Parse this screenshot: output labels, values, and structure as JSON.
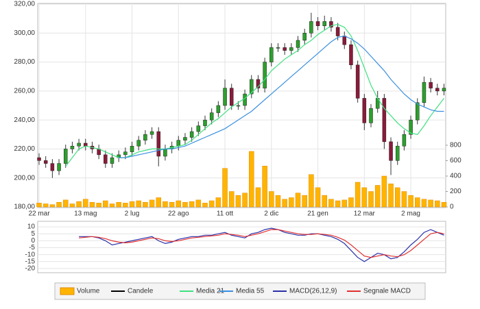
{
  "chart_data": [
    {
      "type": "candlestick",
      "categories": [
        "22 mar",
        null,
        null,
        null,
        null,
        null,
        null,
        "13 mag",
        null,
        null,
        null,
        null,
        null,
        null,
        "2 lug",
        null,
        null,
        null,
        null,
        null,
        null,
        "22 ago",
        null,
        null,
        null,
        null,
        null,
        null,
        "11 ott",
        null,
        null,
        null,
        null,
        null,
        null,
        "2 dic",
        null,
        null,
        null,
        null,
        null,
        null,
        "21 gen",
        null,
        null,
        null,
        null,
        null,
        null,
        "12 mar",
        null,
        null,
        null,
        null,
        null,
        null,
        "2 mag",
        null,
        null,
        null,
        null,
        null
      ],
      "series": [
        {
          "name": "Candele",
          "type": "candlestick",
          "color": "#000000",
          "up_color": "#2ca02c",
          "down_color": "#8b1a3a",
          "open": [
            214,
            212,
            210,
            205,
            210,
            220,
            222,
            224,
            222,
            220,
            216,
            210,
            214,
            216,
            218,
            222,
            226,
            230,
            232,
            215,
            220,
            222,
            226,
            228,
            232,
            236,
            240,
            245,
            250,
            262,
            250,
            250,
            258,
            268,
            262,
            280,
            290,
            290,
            288,
            290,
            295,
            300,
            308,
            305,
            308,
            304,
            298,
            292,
            278,
            255,
            238,
            248,
            255,
            225,
            212,
            222,
            230,
            240,
            252,
            266,
            262,
            260
          ],
          "high": [
            217,
            215,
            213,
            213,
            223,
            225,
            227,
            227,
            225,
            223,
            219,
            217,
            219,
            221,
            225,
            229,
            233,
            235,
            235,
            223,
            225,
            229,
            231,
            235,
            239,
            243,
            248,
            253,
            268,
            265,
            253,
            261,
            271,
            271,
            283,
            293,
            293,
            293,
            293,
            298,
            303,
            314,
            311,
            312,
            311,
            307,
            301,
            295,
            281,
            258,
            251,
            260,
            258,
            228,
            225,
            233,
            243,
            255,
            270,
            269,
            265,
            265
          ],
          "low": [
            209,
            207,
            200,
            202,
            207,
            217,
            219,
            219,
            217,
            213,
            207,
            207,
            211,
            213,
            215,
            219,
            223,
            227,
            208,
            212,
            217,
            219,
            223,
            225,
            229,
            233,
            237,
            242,
            247,
            247,
            247,
            247,
            255,
            259,
            259,
            277,
            287,
            285,
            285,
            287,
            292,
            297,
            302,
            302,
            301,
            295,
            289,
            275,
            252,
            233,
            235,
            245,
            220,
            202,
            209,
            219,
            227,
            237,
            249,
            259,
            257,
            257
          ],
          "close": [
            212,
            210,
            205,
            210,
            220,
            222,
            224,
            222,
            220,
            216,
            210,
            214,
            216,
            218,
            222,
            226,
            230,
            232,
            215,
            220,
            222,
            226,
            228,
            232,
            236,
            240,
            245,
            250,
            262,
            250,
            250,
            258,
            268,
            262,
            280,
            290,
            290,
            288,
            290,
            295,
            300,
            308,
            305,
            308,
            304,
            298,
            292,
            278,
            255,
            238,
            248,
            255,
            225,
            212,
            222,
            230,
            240,
            252,
            266,
            262,
            260,
            262
          ]
        },
        {
          "name": "Volume",
          "type": "bar",
          "axis": "y2",
          "color": "#ffb400",
          "values": [
            50,
            40,
            30,
            60,
            90,
            40,
            70,
            100,
            60,
            50,
            80,
            40,
            60,
            50,
            70,
            80,
            60,
            90,
            120,
            70,
            60,
            80,
            60,
            70,
            90,
            50,
            80,
            120,
            500,
            200,
            150,
            180,
            720,
            250,
            530,
            200,
            150,
            100,
            120,
            180,
            150,
            420,
            250,
            150,
            100,
            80,
            90,
            120,
            320,
            250,
            200,
            280,
            400,
            300,
            250,
            200,
            150,
            120,
            100,
            90,
            80,
            60
          ]
        },
        {
          "name": "Media 21",
          "type": "line",
          "color": "#3ee07f",
          "values": [
            null,
            null,
            null,
            null,
            208,
            214,
            220,
            222,
            221,
            220,
            218,
            216,
            214,
            214,
            216,
            218,
            219,
            220,
            220,
            220,
            221,
            222,
            223,
            226,
            230,
            234,
            238,
            241,
            245,
            249,
            252,
            255,
            259,
            263,
            268,
            274,
            278,
            282,
            285,
            288,
            292,
            295,
            299,
            302,
            305,
            306,
            304,
            298,
            288,
            276,
            264,
            255,
            248,
            243,
            238,
            234,
            231,
            230,
            236,
            243,
            249,
            255
          ]
        },
        {
          "name": "Media 55",
          "type": "line",
          "color": "#3a8fe0",
          "values": [
            null,
            null,
            null,
            null,
            null,
            null,
            null,
            null,
            null,
            null,
            null,
            null,
            214,
            214,
            215,
            216,
            217,
            218,
            219,
            220,
            220,
            221,
            222,
            224,
            226,
            228,
            230,
            232,
            234,
            237,
            240,
            243,
            246,
            250,
            254,
            258,
            262,
            266,
            270,
            274,
            278,
            282,
            286,
            290,
            294,
            297,
            298,
            296,
            293,
            289,
            284,
            279,
            274,
            268,
            263,
            258,
            254,
            251,
            249,
            247,
            246,
            246
          ]
        }
      ],
      "ylim": [
        180,
        320
      ],
      "yticks": [
        {
          "value": 180,
          "label": "180,00"
        },
        {
          "value": 200,
          "label": "200,00"
        },
        {
          "value": 220,
          "label": "220,00"
        },
        {
          "value": 240,
          "label": "240,00"
        },
        {
          "value": 260,
          "label": "260,00"
        },
        {
          "value": 280,
          "label": "280,00"
        },
        {
          "value": 300,
          "label": "300,00"
        },
        {
          "value": 320,
          "label": "320,00"
        }
      ],
      "y2lim": [
        0,
        2630
      ],
      "y2ticks": [
        0,
        200,
        400,
        600,
        800
      ],
      "grid": true
    },
    {
      "type": "line",
      "series": [
        {
          "name": "MACD(26,12,9)",
          "color": "#2a2fa8",
          "values": [
            null,
            null,
            null,
            null,
            null,
            null,
            3,
            3,
            3,
            2,
            0,
            -3,
            -2,
            -1,
            0,
            1,
            2,
            3,
            0,
            -2,
            -1,
            1,
            2,
            3,
            3,
            4,
            4,
            5,
            6,
            4,
            3,
            2,
            5,
            6,
            8,
            9,
            8,
            6,
            5,
            4,
            4,
            5,
            5,
            4,
            3,
            1,
            -2,
            -7,
            -12,
            -15,
            -12,
            -9,
            -10,
            -13,
            -12,
            -8,
            -3,
            1,
            6,
            8,
            6,
            4
          ]
        },
        {
          "name": "Segnale MACD",
          "color": "#e03030",
          "values": [
            null,
            null,
            null,
            null,
            null,
            null,
            2,
            2.5,
            3,
            2.5,
            1.5,
            0,
            -1,
            -1.5,
            -1,
            0,
            1,
            2,
            1.5,
            0,
            -0.5,
            0,
            1,
            2,
            2.5,
            3,
            3.5,
            4,
            5,
            4.5,
            4,
            3,
            4,
            5,
            6.5,
            8,
            8,
            7,
            6,
            5,
            4.5,
            4.5,
            5,
            4.5,
            4,
            2.5,
            0.5,
            -3,
            -7,
            -11,
            -12,
            -11,
            -10,
            -11,
            -11.5,
            -10,
            -7,
            -3,
            1,
            5,
            6,
            5
          ]
        }
      ],
      "ylim": [
        -22,
        13
      ],
      "yticks": [
        10,
        5,
        0,
        -5,
        -10,
        -15,
        -20
      ],
      "grid": true
    }
  ]
}
